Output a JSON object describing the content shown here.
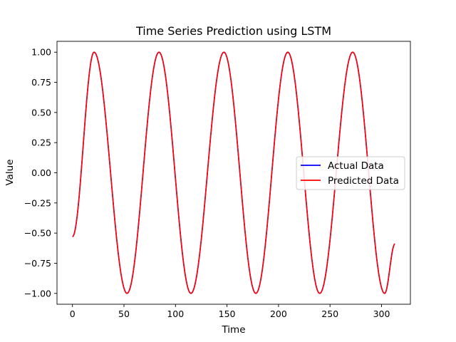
{
  "chart_data": {
    "type": "line",
    "title": "Time Series Prediction using LSTM",
    "xlabel": "Time",
    "ylabel": "Value",
    "xlim": [
      -15,
      328
    ],
    "ylim": [
      -1.09,
      1.09
    ],
    "xticks": [
      0,
      50,
      100,
      150,
      200,
      250,
      300
    ],
    "xtick_labels": [
      "0",
      "50",
      "100",
      "150",
      "200",
      "250",
      "300"
    ],
    "yticks": [
      -1.0,
      -0.75,
      -0.5,
      -0.25,
      0.0,
      0.25,
      0.5,
      0.75,
      1.0
    ],
    "ytick_labels": [
      "−1.00",
      "−0.75",
      "−0.50",
      "−0.25",
      "0.00",
      "0.25",
      "0.50",
      "0.75",
      "1.00"
    ],
    "grid": false,
    "legend_position": "center-right",
    "x_range": [
      0,
      313
    ],
    "series": [
      {
        "name": "Actual Data",
        "color": "#0000ff",
        "x": [
          0,
          21,
          53,
          84,
          115,
          147,
          178,
          209,
          240,
          272,
          303,
          313
        ],
        "y": [
          -0.53,
          1.0,
          -1.0,
          1.0,
          -1.0,
          1.0,
          -1.0,
          1.0,
          -1.0,
          1.0,
          -1.0,
          -0.59
        ]
      },
      {
        "name": "Predicted Data",
        "color": "#ff0000",
        "x": [
          0,
          21,
          53,
          84,
          115,
          147,
          178,
          209,
          240,
          272,
          303,
          313
        ],
        "y": [
          -0.53,
          1.0,
          -1.0,
          1.0,
          -1.0,
          1.0,
          -1.0,
          1.0,
          -1.0,
          1.0,
          -1.0,
          -0.59
        ]
      }
    ]
  }
}
